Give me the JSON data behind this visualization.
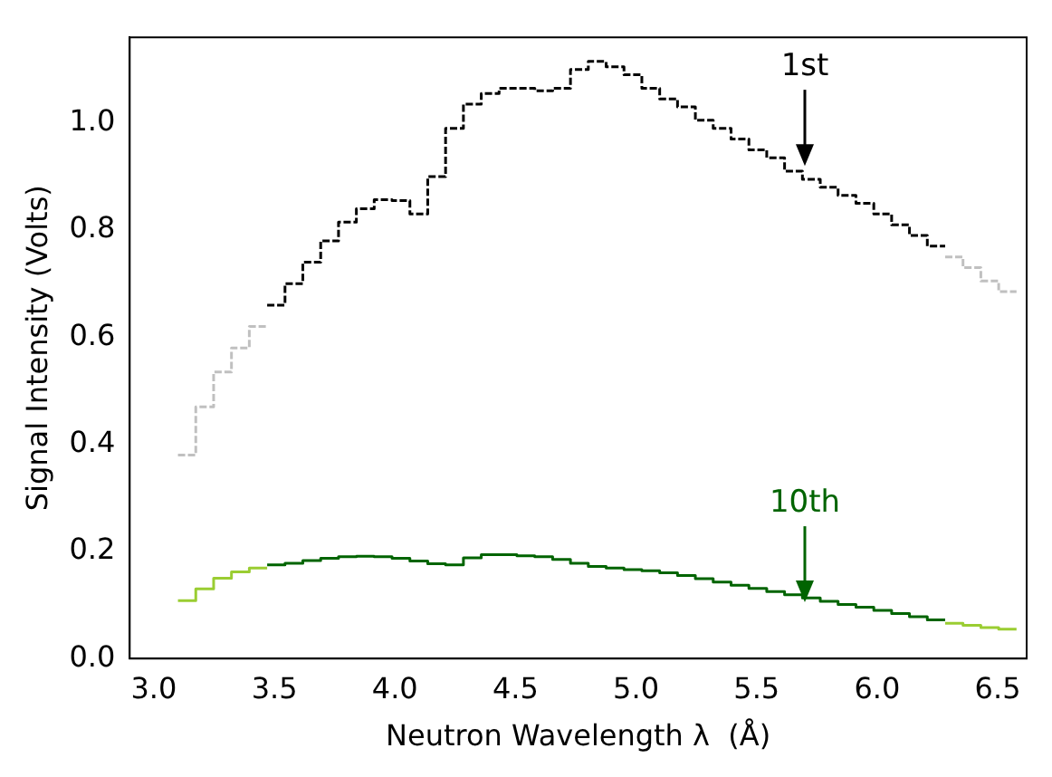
{
  "chart_data": {
    "type": "step",
    "xlabel": "Neutron Wavelength λ  (Å)",
    "ylabel": "Signal Intensity (Volts)",
    "xlim": [
      2.9,
      6.62
    ],
    "ylim": [
      0,
      1.16
    ],
    "xticks": [
      {
        "value": 3,
        "label": "3.0"
      },
      {
        "value": 3.5,
        "label": "3.5"
      },
      {
        "value": 4,
        "label": "4.0"
      },
      {
        "value": 4.5,
        "label": "4.5"
      },
      {
        "value": 5,
        "label": "5.0"
      },
      {
        "value": 5.5,
        "label": "5.5"
      },
      {
        "value": 6,
        "label": "6.0"
      },
      {
        "value": 6.5,
        "label": "6.5"
      }
    ],
    "yticks": [
      {
        "value": 0,
        "label": "0.0"
      },
      {
        "value": 0.2,
        "label": "0.2"
      },
      {
        "value": 0.4,
        "label": "0.4"
      },
      {
        "value": 0.6,
        "label": "0.6"
      },
      {
        "value": 0.8,
        "label": "0.8"
      },
      {
        "value": 1,
        "label": "1.0"
      }
    ],
    "grid": false,
    "legend": false,
    "annotations": [
      {
        "text": "1st",
        "x": 5.7,
        "y": 0.92
      },
      {
        "text": "10th",
        "x": 5.7,
        "y": 0.105
      }
    ],
    "series": [
      {
        "color": "#c0c0c0",
        "line_style": "dashed",
        "x": [
          3.1,
          3.174,
          3.248,
          3.322,
          3.396,
          3.47
        ],
        "values": [
          0.38,
          0.47,
          0.535,
          0.58,
          0.62,
          0.62
        ]
      },
      {
        "color": "#000000",
        "line_style": "dashed",
        "x": [
          3.47,
          3.544,
          3.618,
          3.692,
          3.766,
          3.84,
          3.914,
          3.988,
          4.062,
          4.136,
          4.21,
          4.284,
          4.358,
          4.432,
          4.506,
          4.58,
          4.654,
          4.728,
          4.802,
          4.876,
          4.95,
          5.024,
          5.098,
          5.172,
          5.246,
          5.32,
          5.394,
          5.468,
          5.542,
          5.616,
          5.69,
          5.764,
          5.838,
          5.912,
          5.986,
          6.06,
          6.134,
          6.208,
          6.282
        ],
        "values": [
          0.66,
          0.7,
          0.74,
          0.78,
          0.815,
          0.84,
          0.857,
          0.855,
          0.83,
          0.9,
          0.99,
          1.035,
          1.055,
          1.065,
          1.065,
          1.06,
          1.065,
          1.1,
          1.115,
          1.105,
          1.09,
          1.065,
          1.045,
          1.03,
          1.005,
          0.99,
          0.97,
          0.95,
          0.935,
          0.91,
          0.895,
          0.88,
          0.865,
          0.85,
          0.83,
          0.81,
          0.79,
          0.77,
          0.77
        ]
      },
      {
        "color": "#c0c0c0",
        "line_style": "dashed",
        "x": [
          6.282,
          6.356,
          6.43,
          6.504,
          6.578
        ],
        "values": [
          0.75,
          0.73,
          0.705,
          0.685,
          0.685
        ]
      },
      {
        "color": "#9acd32",
        "line_style": "solid",
        "x": [
          3.1,
          3.174,
          3.248,
          3.322,
          3.396,
          3.47
        ],
        "values": [
          0.108,
          0.13,
          0.15,
          0.162,
          0.169,
          0.169
        ]
      },
      {
        "color": "#006400",
        "line_style": "solid",
        "x": [
          3.47,
          3.544,
          3.618,
          3.692,
          3.766,
          3.84,
          3.914,
          3.988,
          4.062,
          4.136,
          4.21,
          4.284,
          4.358,
          4.432,
          4.506,
          4.58,
          4.654,
          4.728,
          4.802,
          4.876,
          4.95,
          5.024,
          5.098,
          5.172,
          5.246,
          5.32,
          5.394,
          5.468,
          5.542,
          5.616,
          5.69,
          5.764,
          5.838,
          5.912,
          5.986,
          6.06,
          6.134,
          6.208,
          6.282
        ],
        "values": [
          0.175,
          0.178,
          0.183,
          0.187,
          0.19,
          0.191,
          0.19,
          0.187,
          0.182,
          0.177,
          0.175,
          0.188,
          0.194,
          0.194,
          0.192,
          0.19,
          0.185,
          0.178,
          0.172,
          0.169,
          0.166,
          0.164,
          0.16,
          0.155,
          0.149,
          0.143,
          0.137,
          0.131,
          0.125,
          0.119,
          0.113,
          0.107,
          0.101,
          0.096,
          0.09,
          0.084,
          0.078,
          0.072,
          0.072
        ]
      },
      {
        "color": "#9acd32",
        "line_style": "solid",
        "x": [
          6.282,
          6.356,
          6.43,
          6.504,
          6.578
        ],
        "values": [
          0.066,
          0.062,
          0.058,
          0.055,
          0.055
        ]
      }
    ]
  }
}
